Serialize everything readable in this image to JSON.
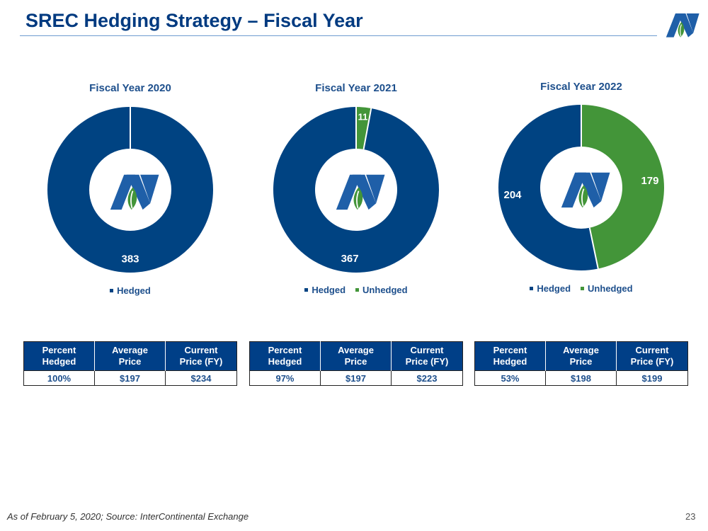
{
  "header": {
    "title": "SREC Hedging Strategy – Fiscal Year"
  },
  "colors": {
    "hedged": "#004382",
    "unhedged": "#439539",
    "header_bg": "#003f87"
  },
  "icons": [
    "company-logo-icon"
  ],
  "chart_data": [
    {
      "type": "pie",
      "title": "Fiscal Year 2020",
      "categories": [
        "Hedged"
      ],
      "values": [
        383
      ],
      "legend": [
        "Hedged"
      ],
      "legend_position": "bottom"
    },
    {
      "type": "pie",
      "title": "Fiscal Year 2021",
      "categories": [
        "Hedged",
        "Unhedged"
      ],
      "values": [
        367,
        11
      ],
      "legend": [
        "Hedged",
        "Unhedged"
      ],
      "legend_position": "bottom"
    },
    {
      "type": "pie",
      "title": "Fiscal Year 2022",
      "categories": [
        "Hedged",
        "Unhedged"
      ],
      "values": [
        204,
        179
      ],
      "legend": [
        "Hedged",
        "Unhedged"
      ],
      "legend_position": "bottom"
    }
  ],
  "tables": [
    {
      "headers": [
        "Percent\nHedged",
        "Average\nPrice",
        "Current\nPrice (FY)"
      ],
      "row": [
        "100%",
        "$197",
        "$234"
      ]
    },
    {
      "headers": [
        "Percent\nHedged",
        "Average\nPrice",
        "Current\nPrice (FY)"
      ],
      "row": [
        "97%",
        "$197",
        "$223"
      ]
    },
    {
      "headers": [
        "Percent\nHedged",
        "Average\nPrice",
        "Current\nPrice (FY)"
      ],
      "row": [
        "53%",
        "$198",
        "$199"
      ]
    }
  ],
  "footer": {
    "note": "As of February 5, 2020; Source: InterContinental Exchange",
    "page_number": "23"
  }
}
